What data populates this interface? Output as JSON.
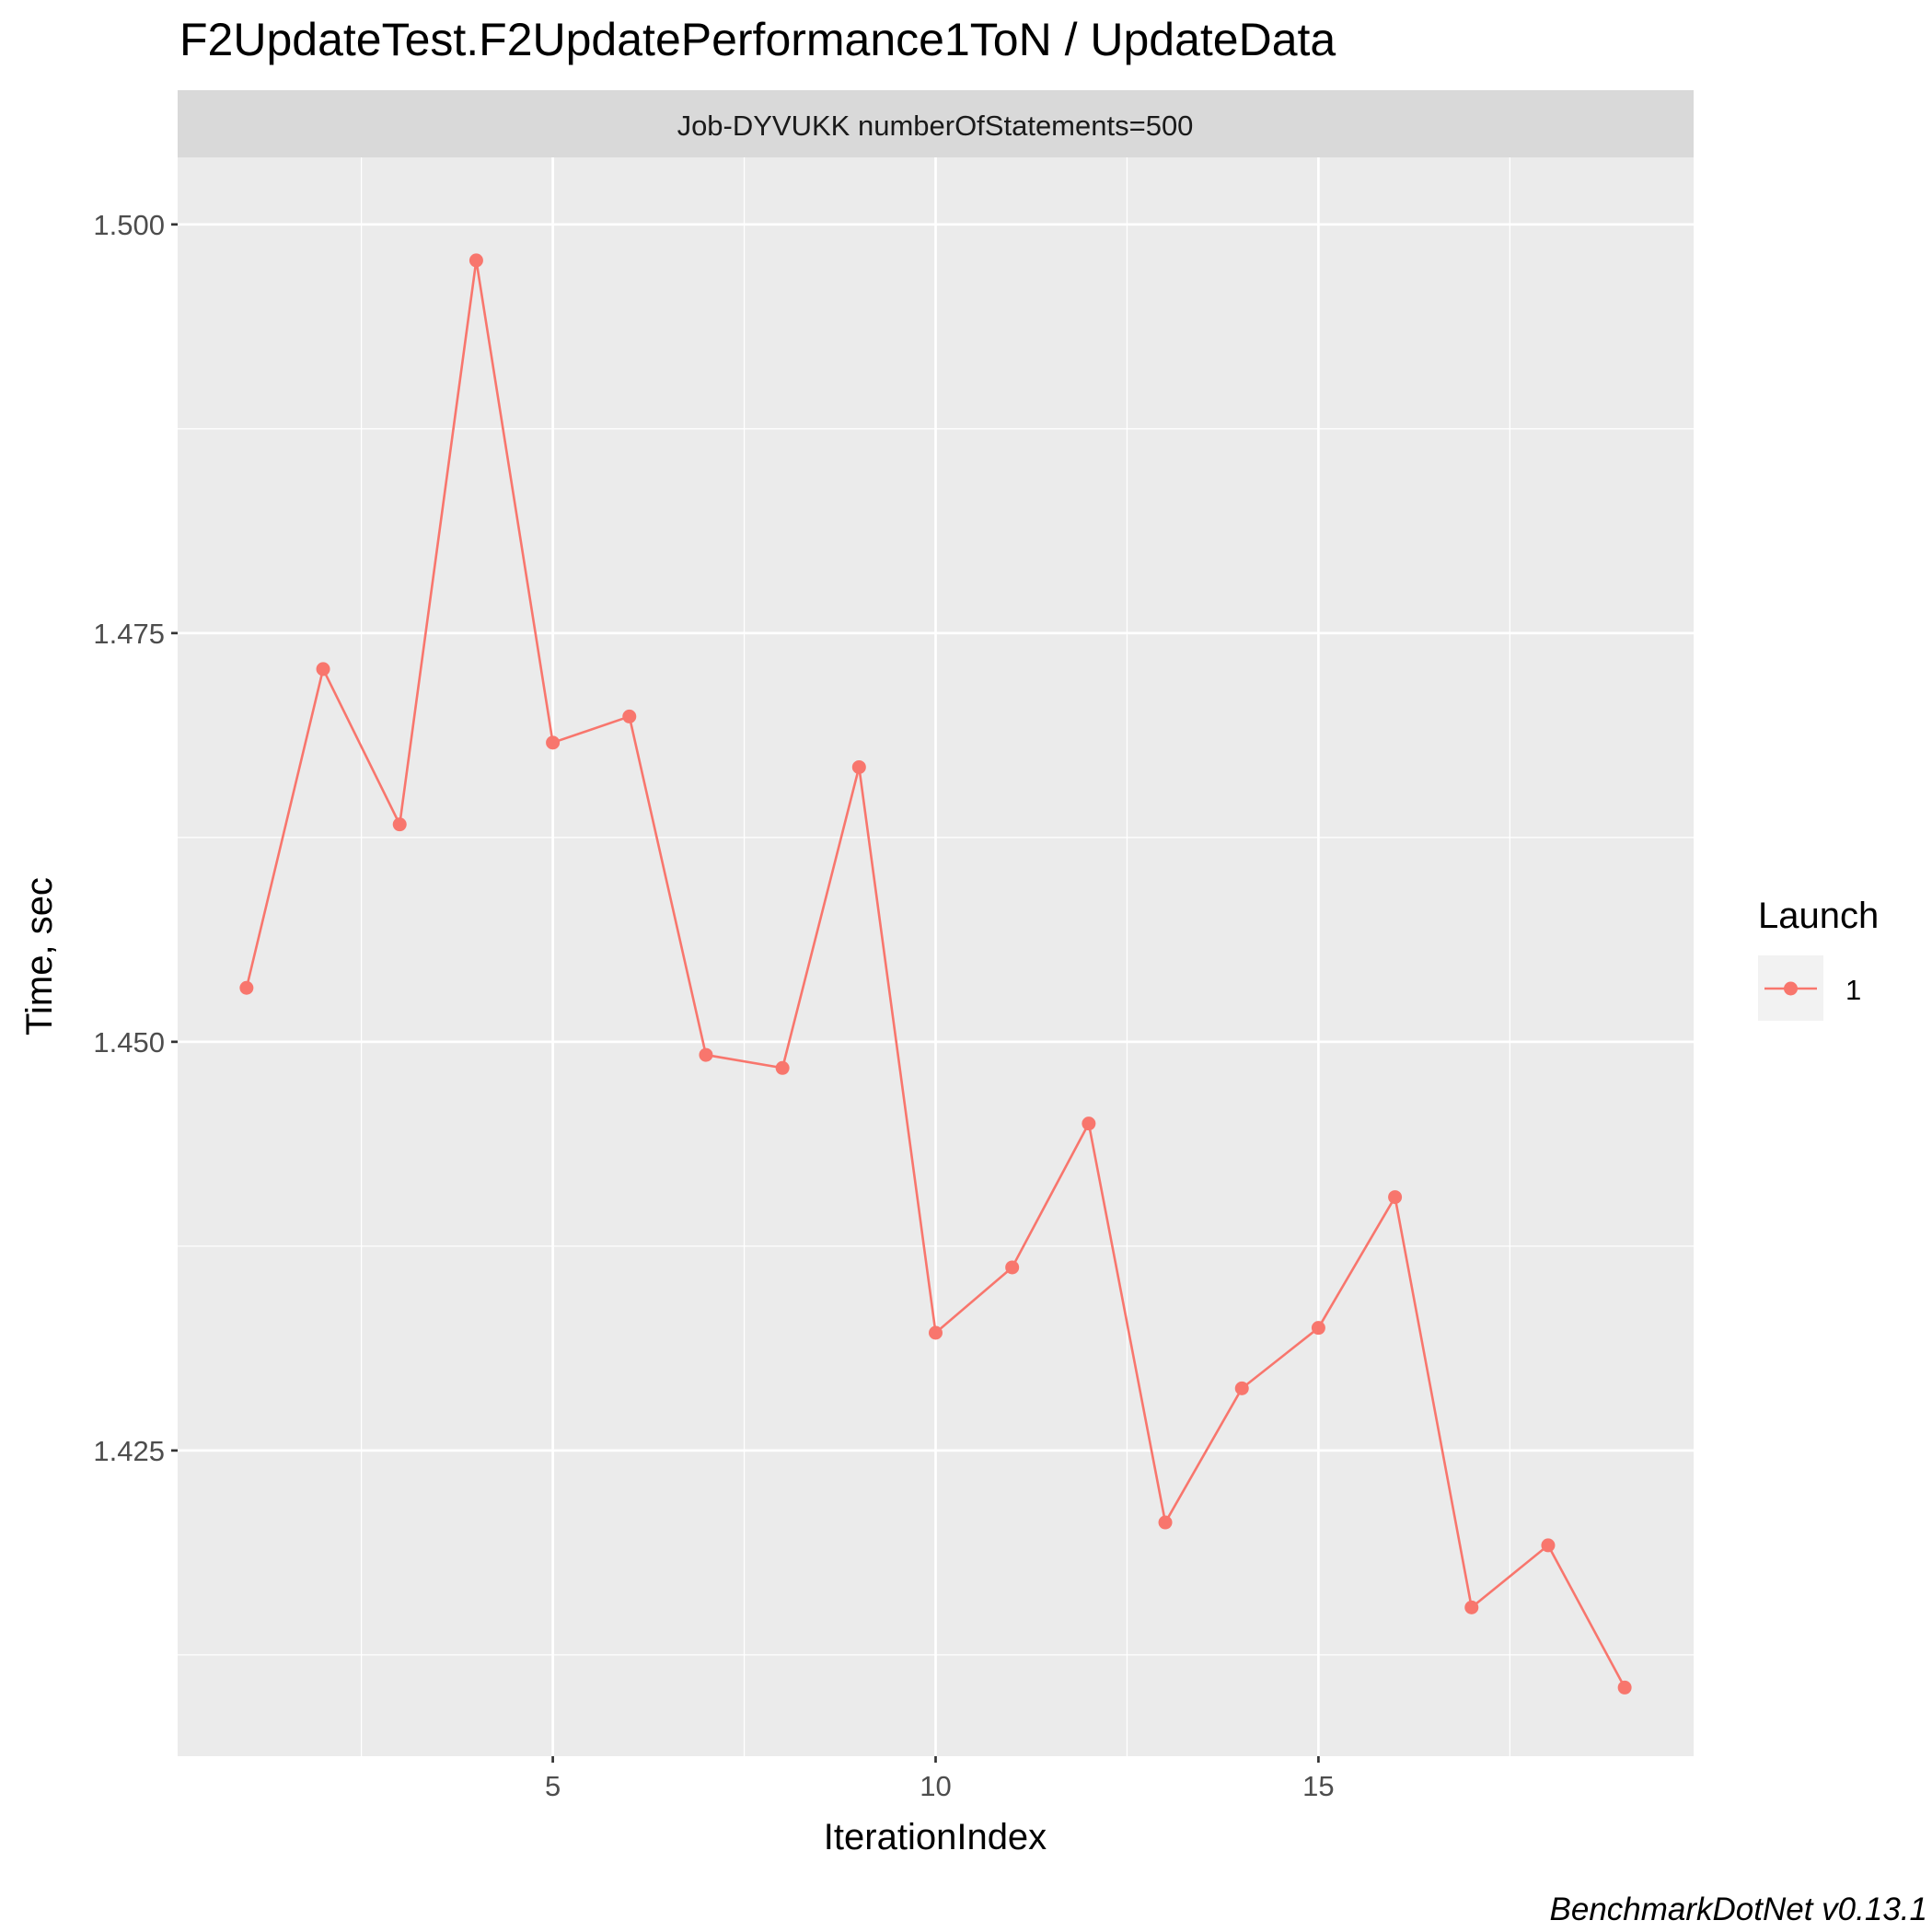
{
  "chart_data": {
    "type": "line",
    "title": "F2UpdateTest.F2UpdatePerformance1ToN / UpdateData",
    "facet_label": "Job-DYVUKK numberOfStatements=500",
    "xlabel": "IterationIndex",
    "ylabel": "Time, sec",
    "xlim": [
      0.1,
      19.9
    ],
    "ylim": [
      1.4063,
      1.5041
    ],
    "x_ticks": [
      5,
      10,
      15
    ],
    "x_tick_labels": [
      "5",
      "10",
      "15"
    ],
    "y_ticks": [
      1.425,
      1.45,
      1.475,
      1.5
    ],
    "y_tick_labels": [
      "1.425",
      "1.450",
      "1.475",
      "1.500"
    ],
    "grid": true,
    "legend": {
      "title": "Launch",
      "position": "right"
    },
    "series": [
      {
        "name": "1",
        "color": "#F8766D",
        "x": [
          1,
          2,
          3,
          4,
          5,
          6,
          7,
          8,
          9,
          10,
          11,
          12,
          13,
          14,
          15,
          16,
          17,
          18,
          19
        ],
        "y": [
          1.4533,
          1.4728,
          1.4633,
          1.4978,
          1.4683,
          1.4699,
          1.4492,
          1.4484,
          1.4668,
          1.4322,
          1.4362,
          1.445,
          1.4206,
          1.4288,
          1.4325,
          1.4405,
          1.4154,
          1.4192,
          1.4105
        ]
      }
    ]
  },
  "caption": "BenchmarkDotNet v0.13.1"
}
